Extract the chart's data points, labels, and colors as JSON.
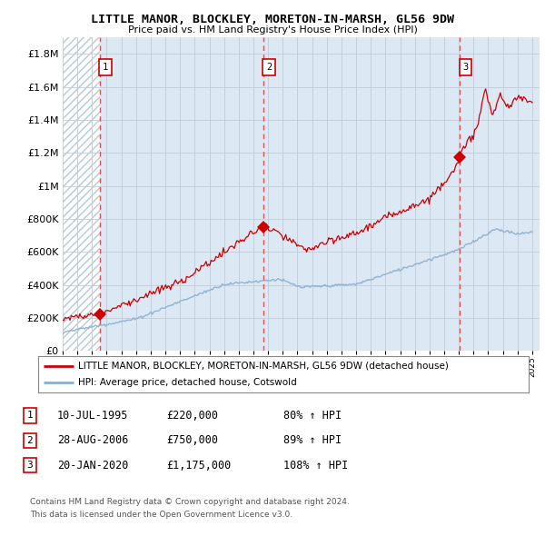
{
  "title1": "LITTLE MANOR, BLOCKLEY, MORETON-IN-MARSH, GL56 9DW",
  "title2": "Price paid vs. HM Land Registry's House Price Index (HPI)",
  "xlim": [
    1993.0,
    2025.5
  ],
  "ylim": [
    0,
    1900000
  ],
  "yticks": [
    0,
    200000,
    400000,
    600000,
    800000,
    1000000,
    1200000,
    1400000,
    1600000,
    1800000
  ],
  "ytick_labels": [
    "£0",
    "£200K",
    "£400K",
    "£600K",
    "£800K",
    "£1M",
    "£1.2M",
    "£1.4M",
    "£1.6M",
    "£1.8M"
  ],
  "xticks": [
    1993,
    1994,
    1995,
    1996,
    1997,
    1998,
    1999,
    2000,
    2001,
    2002,
    2003,
    2004,
    2005,
    2006,
    2007,
    2008,
    2009,
    2010,
    2011,
    2012,
    2013,
    2014,
    2015,
    2016,
    2017,
    2018,
    2019,
    2020,
    2021,
    2022,
    2023,
    2024,
    2025
  ],
  "sale_dates": [
    1995.53,
    2006.66,
    2020.05
  ],
  "sale_prices": [
    220000,
    750000,
    1175000
  ],
  "sale_labels": [
    "1",
    "2",
    "3"
  ],
  "legend_line1": "LITTLE MANOR, BLOCKLEY, MORETON-IN-MARSH, GL56 9DW (detached house)",
  "legend_line2": "HPI: Average price, detached house, Cotswold",
  "table_rows": [
    [
      "1",
      "10-JUL-1995",
      "£220,000",
      "80% ↑ HPI"
    ],
    [
      "2",
      "28-AUG-2006",
      "£750,000",
      "89% ↑ HPI"
    ],
    [
      "3",
      "20-JAN-2020",
      "£1,175,000",
      "108% ↑ HPI"
    ]
  ],
  "footer1": "Contains HM Land Registry data © Crown copyright and database right 2024.",
  "footer2": "This data is licensed under the Open Government Licence v3.0.",
  "hatch_color": "#b0c4d8",
  "grid_color": "#c0ccd8",
  "hpi_color": "#88aed0",
  "sale_color": "#cc0000",
  "bg_color": "#dce8f4"
}
